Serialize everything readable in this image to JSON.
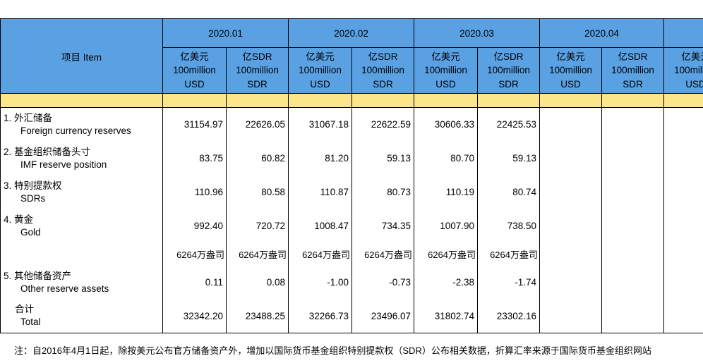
{
  "header": {
    "item_label": "项目  Item",
    "months": [
      "2020.01",
      "2020.02",
      "2020.03",
      "2020.04",
      ""
    ],
    "units": {
      "usd": [
        "亿美元",
        "100million",
        "USD"
      ],
      "sdr": [
        "亿SDR",
        "100million",
        "SDR"
      ]
    }
  },
  "rows": [
    {
      "zh": "1. 外汇储备",
      "en": "Foreign currency reserves",
      "values": [
        "31154.97",
        "22626.05",
        "31067.18",
        "22622.59",
        "30606.33",
        "22425.53",
        "",
        "",
        ""
      ]
    },
    {
      "zh": "2. 基金组织储备头寸",
      "en": "IMF reserve position",
      "values": [
        "83.75",
        "60.82",
        "81.20",
        "59.13",
        "80.70",
        "59.13",
        "",
        "",
        ""
      ]
    },
    {
      "zh": "3. 特别提款权",
      "en": "SDRs",
      "values": [
        "110.96",
        "80.58",
        "110.87",
        "80.73",
        "110.19",
        "80.74",
        "",
        "",
        ""
      ]
    },
    {
      "zh": "4. 黄金",
      "en": "Gold",
      "values": [
        "992.40",
        "720.72",
        "1008.47",
        "734.35",
        "1007.90",
        "738.50",
        "",
        "",
        ""
      ]
    },
    {
      "zh": "",
      "en": "",
      "values": [
        "6264万盎司",
        "6264万盎司",
        "6264万盎司",
        "6264万盎司",
        "6264万盎司",
        "6264万盎司",
        "",
        "",
        ""
      ]
    },
    {
      "zh": "5. 其他储备资产",
      "en": "Other reserve assets",
      "values": [
        "0.11",
        "0.08",
        "-1.00",
        "-0.73",
        "-2.38",
        "-1.74",
        "",
        "",
        ""
      ]
    },
    {
      "zh": "合计",
      "en": "Total",
      "values": [
        "32342.20",
        "23488.25",
        "32266.73",
        "23496.07",
        "31802.74",
        "23302.16",
        "",
        "",
        ""
      ]
    }
  ],
  "footnote": "注：自2016年4月1日起，除按美元公布官方储备资产外，增加以国际货币基金组织特别提款权（SDR）公布相关数据，折算汇率来源于国际货币基金组织网站"
}
